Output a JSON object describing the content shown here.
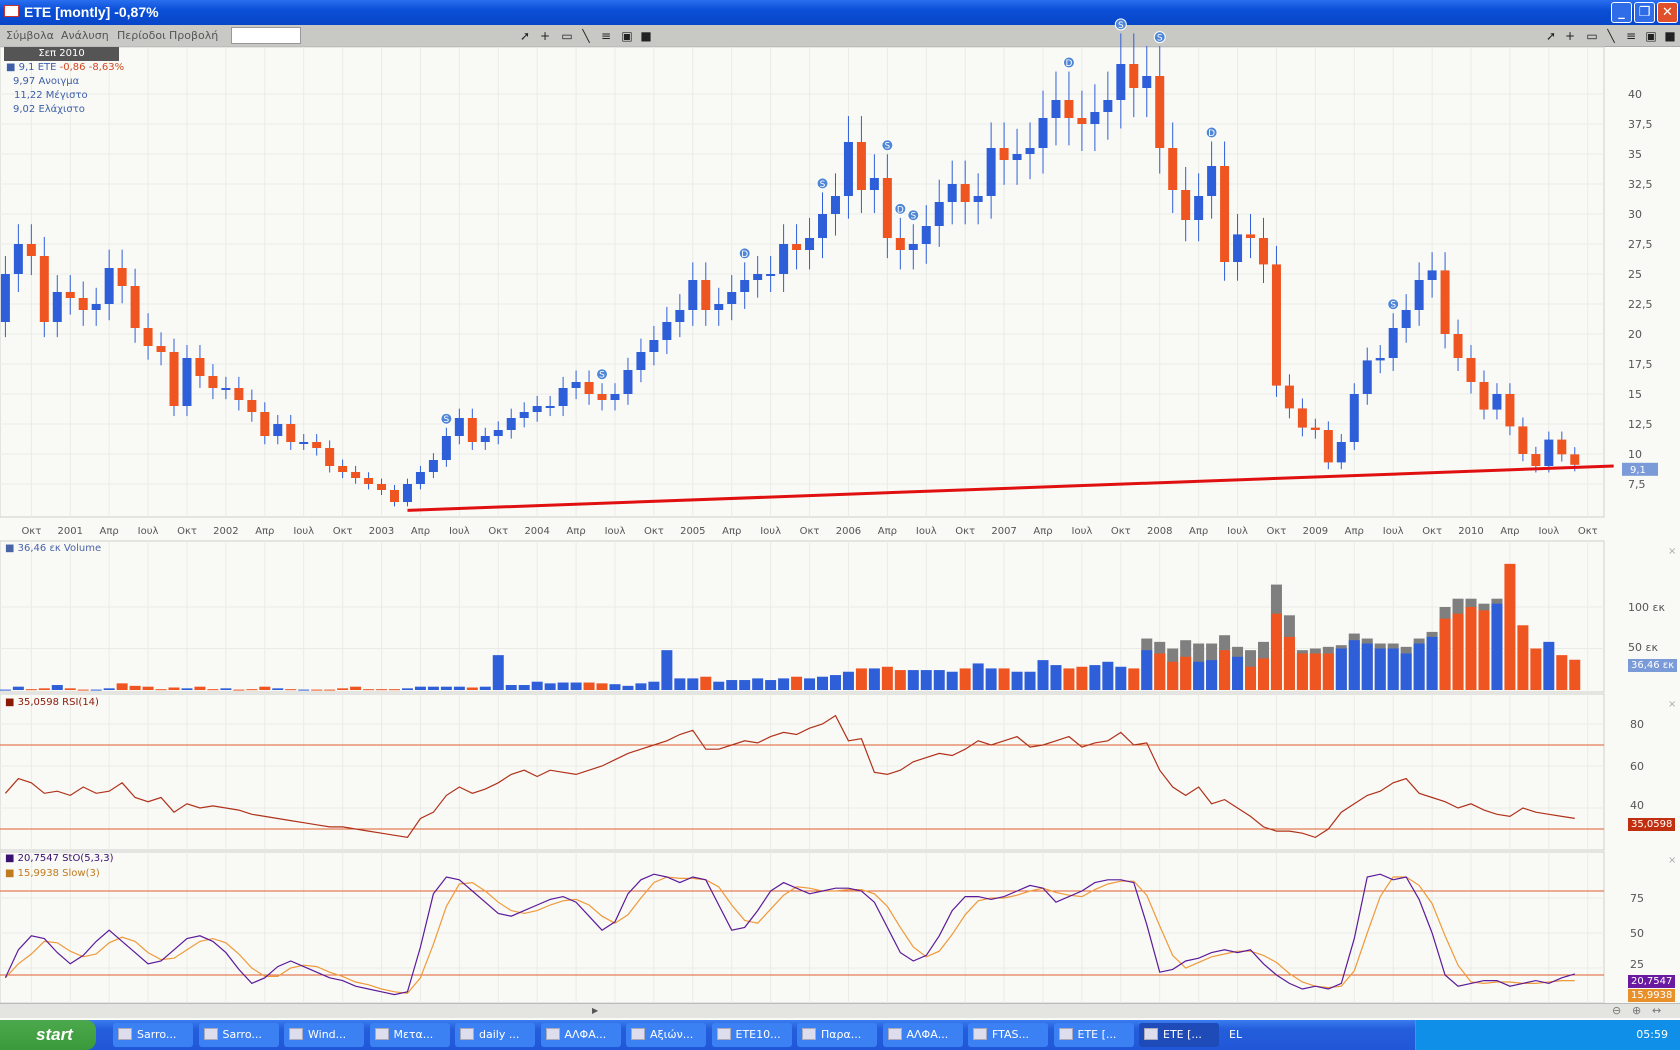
{
  "window": {
    "title": "ETE [montly] -0,87%",
    "buttons": [
      "_",
      "❐",
      "✕"
    ]
  },
  "menu": {
    "items": [
      "Σύμβολα",
      "Ανάλυση",
      "Περίοδοι",
      "Προβολή"
    ],
    "search_value": "",
    "tools": [
      "pointer-icon",
      "crosshair-icon",
      "rectangle-icon",
      "line-icon",
      "grid-lines-icon",
      "chart-icon",
      "save-icon"
    ]
  },
  "legend": {
    "date": "Σεπ 2010",
    "last": "9,1 ETE",
    "change": "-0,86 -8,63%",
    "open": "9,97 Ανοιγμα",
    "high": "11,22 Μέγιστο",
    "low": "9,02 Ελάχιστο"
  },
  "panes": {
    "volume": {
      "label": "36,46 εκ Volume",
      "ticks": [
        "50 εκ",
        "100 εκ"
      ],
      "tag": "36,46 εκ"
    },
    "rsi": {
      "label": "35,0598 RSI(14)",
      "ticks": [
        "40",
        "60",
        "80"
      ],
      "tag": "35,0598"
    },
    "stoch": {
      "label_k": "20,7547 StO(5,3,3)",
      "label_slow": "15,9938 Slow(3)",
      "ticks": [
        "25",
        "50",
        "75"
      ],
      "tag_k": "20,7547",
      "tag_slow": "15,9938"
    },
    "close_icon": "×"
  },
  "colors": {
    "up": "#2f5fd8",
    "down": "#ef5521",
    "trendline": "#e01010",
    "volume_gray": "#7f7f7f",
    "rsi": "#b0321a",
    "bands": "#e0602e",
    "stoch_k": "#5a1a9a",
    "stoch_slow": "#ef9a3a"
  },
  "chart_data": {
    "type": "candlestick",
    "start_month": "2000-08",
    "end_month": "2010-09",
    "first_open": 21,
    "close": [
      25,
      27.5,
      26.5,
      21,
      23.5,
      23,
      22,
      22.5,
      25.5,
      24,
      20.5,
      19,
      18.5,
      14,
      18,
      16.5,
      15.5,
      15.5,
      14.5,
      13.5,
      11.5,
      12.5,
      11,
      11,
      10.5,
      9,
      8.5,
      8,
      7.5,
      7,
      6,
      7.5,
      8.5,
      9.5,
      11.5,
      13,
      11,
      11.5,
      12,
      13,
      13.5,
      14,
      14,
      15.5,
      16,
      15,
      14.5,
      15,
      17,
      18.5,
      19.5,
      21,
      22,
      24.5,
      22,
      22.5,
      23.5,
      24.5,
      25,
      25,
      27.5,
      27,
      28,
      30,
      31.5,
      36,
      32,
      33,
      28,
      27,
      27.5,
      29,
      31,
      32.5,
      31,
      31.5,
      35.5,
      34.5,
      35,
      35.5,
      38,
      39.5,
      38,
      37.5,
      38.5,
      39.5,
      42.5,
      40.5,
      41.5,
      35.5,
      32,
      29.5,
      31.5,
      34,
      26,
      28.3,
      28,
      25.8,
      15.7,
      13.8,
      12.2,
      12,
      9.3,
      11,
      15,
      17.8,
      18,
      20.5,
      22,
      24.5,
      25.3,
      20,
      18,
      16,
      13.7,
      15,
      12.3,
      10,
      9,
      11.2,
      9.97,
      9.1
    ],
    "price_axis": {
      "ticks": [
        "7,5",
        "10",
        "12,5",
        "15",
        "17,5",
        "20",
        "22,5",
        "25",
        "27,5",
        "30",
        "32,5",
        "35",
        "37,5",
        "40"
      ],
      "range": [
        5,
        45
      ]
    },
    "last_price_tag": "9,1",
    "trendline": {
      "from": [
        "2003-03",
        5.3
      ],
      "to": [
        "2010-12",
        9.0
      ]
    },
    "signals": [
      {
        "month": "2003-06",
        "type": "S"
      },
      {
        "month": "2004-06",
        "type": "S"
      },
      {
        "month": "2005-05",
        "type": "D"
      },
      {
        "month": "2005-11",
        "type": "S"
      },
      {
        "month": "2006-04",
        "type": "S"
      },
      {
        "month": "2006-05",
        "type": "D"
      },
      {
        "month": "2006-06",
        "type": "S"
      },
      {
        "month": "2007-06",
        "type": "D"
      },
      {
        "month": "2007-10",
        "type": "S"
      },
      {
        "month": "2008-01",
        "type": "S"
      },
      {
        "month": "2008-05",
        "type": "D"
      },
      {
        "month": "2009-07",
        "type": "S"
      }
    ],
    "date_ticks": [
      [
        "2000-10",
        "Οκτ"
      ],
      [
        "2001-01",
        "2001"
      ],
      [
        "2001-04",
        "Απρ"
      ],
      [
        "2001-07",
        "Ιουλ"
      ],
      [
        "2001-10",
        "Οκτ"
      ],
      [
        "2002-01",
        "2002"
      ],
      [
        "2002-04",
        "Απρ"
      ],
      [
        "2002-07",
        "Ιουλ"
      ],
      [
        "2002-10",
        "Οκτ"
      ],
      [
        "2003-01",
        "2003"
      ],
      [
        "2003-04",
        "Απρ"
      ],
      [
        "2003-07",
        "Ιουλ"
      ],
      [
        "2003-10",
        "Οκτ"
      ],
      [
        "2004-01",
        "2004"
      ],
      [
        "2004-04",
        "Απρ"
      ],
      [
        "2004-07",
        "Ιουλ"
      ],
      [
        "2004-10",
        "Οκτ"
      ],
      [
        "2005-01",
        "2005"
      ],
      [
        "2005-04",
        "Απρ"
      ],
      [
        "2005-07",
        "Ιουλ"
      ],
      [
        "2005-10",
        "Οκτ"
      ],
      [
        "2006-01",
        "2006"
      ],
      [
        "2006-04",
        "Απρ"
      ],
      [
        "2006-07",
        "Ιουλ"
      ],
      [
        "2006-10",
        "Οκτ"
      ],
      [
        "2007-01",
        "2007"
      ],
      [
        "2007-04",
        "Απρ"
      ],
      [
        "2007-07",
        "Ιουλ"
      ],
      [
        "2007-10",
        "Οκτ"
      ],
      [
        "2008-01",
        "2008"
      ],
      [
        "2008-04",
        "Απρ"
      ],
      [
        "2008-07",
        "Ιουλ"
      ],
      [
        "2008-10",
        "Οκτ"
      ],
      [
        "2009-01",
        "2009"
      ],
      [
        "2009-04",
        "Απρ"
      ],
      [
        "2009-07",
        "Ιουλ"
      ],
      [
        "2009-10",
        "Οκτ"
      ],
      [
        "2010-01",
        "2010"
      ],
      [
        "2010-04",
        "Απρ"
      ],
      [
        "2010-07",
        "Ιουλ"
      ],
      [
        "2010-10",
        "Οκτ"
      ]
    ],
    "volume": [
      0.5,
      4,
      1,
      2,
      6,
      2,
      0.5,
      0.5,
      2,
      8,
      5,
      4,
      1,
      3,
      2,
      4,
      1,
      2,
      0.5,
      1,
      4,
      2,
      1,
      0.5,
      0.5,
      0.5,
      2,
      4,
      1,
      1,
      1,
      2,
      4,
      4,
      4,
      4,
      3,
      4,
      42,
      6,
      6,
      10,
      8,
      9,
      9,
      9,
      8,
      7,
      5,
      8,
      10,
      48,
      14,
      14,
      16,
      10,
      12,
      12,
      14,
      12,
      14,
      16,
      14,
      16,
      18,
      22,
      26,
      26,
      28,
      24,
      24,
      24,
      24,
      22,
      26,
      32,
      26,
      26,
      22,
      22,
      36,
      30,
      26,
      28,
      30,
      34,
      28,
      26,
      48,
      44,
      34,
      40,
      34,
      36,
      48,
      40,
      28,
      38,
      92,
      64,
      44,
      44,
      44,
      50,
      60,
      56,
      50,
      50,
      44,
      56,
      64,
      86,
      92,
      100,
      96,
      104,
      152,
      78,
      50,
      58,
      42,
      36.46
    ],
    "volume_total_from": "2007-12",
    "volume_total": [
      62,
      58,
      50,
      60,
      56,
      56,
      66,
      52,
      48,
      58,
      127,
      90,
      48,
      50,
      52,
      54,
      68,
      62,
      56,
      56,
      52,
      62,
      70,
      100,
      110,
      110,
      104,
      110,
      152,
      78,
      50,
      58,
      42,
      36.46
    ],
    "rsi": [
      47,
      54,
      52,
      47,
      48,
      46,
      50,
      47,
      48,
      52,
      45,
      43,
      45,
      38,
      42,
      40,
      41,
      40,
      39,
      37,
      36,
      35,
      34,
      33,
      32,
      31,
      31,
      30,
      29,
      28,
      27,
      26,
      35,
      38,
      46,
      50,
      47,
      49,
      52,
      56,
      58,
      55,
      58,
      57,
      56,
      58,
      60,
      63,
      66,
      68,
      70,
      72,
      75,
      77,
      68,
      68,
      70,
      72,
      71,
      74,
      76,
      75,
      78,
      80,
      84,
      72,
      73,
      57,
      56,
      58,
      62,
      64,
      66,
      65,
      68,
      72,
      70,
      72,
      74,
      69,
      70,
      72,
      74,
      69,
      71,
      72,
      76,
      70,
      71,
      58,
      50,
      46,
      50,
      42,
      44,
      40,
      36,
      31,
      29,
      29,
      28,
      26,
      30,
      38,
      42,
      46,
      48,
      52,
      54,
      47,
      45,
      43,
      40,
      42,
      39,
      37,
      36,
      40,
      38,
      37,
      36,
      35.06
    ],
    "rsi_bands": [
      30,
      70
    ],
    "stoch_k": [
      18,
      38,
      48,
      46,
      36,
      28,
      34,
      44,
      52,
      44,
      36,
      28,
      30,
      38,
      46,
      48,
      44,
      36,
      24,
      14,
      18,
      26,
      30,
      26,
      22,
      18,
      16,
      12,
      10,
      8,
      6,
      8,
      40,
      78,
      90,
      88,
      80,
      72,
      64,
      62,
      66,
      70,
      74,
      76,
      72,
      62,
      52,
      58,
      78,
      88,
      92,
      90,
      86,
      90,
      88,
      70,
      52,
      54,
      66,
      80,
      86,
      82,
      78,
      80,
      82,
      82,
      80,
      72,
      54,
      36,
      30,
      34,
      48,
      66,
      76,
      76,
      74,
      76,
      80,
      84,
      82,
      72,
      76,
      80,
      86,
      88,
      88,
      86,
      56,
      22,
      24,
      30,
      32,
      36,
      38,
      36,
      38,
      28,
      20,
      14,
      10,
      12,
      10,
      14,
      46,
      90,
      92,
      88,
      90,
      74,
      50,
      20,
      12,
      14,
      16,
      16,
      12,
      14,
      16,
      14,
      18,
      20.75
    ],
    "stoch_slow": [
      18,
      28,
      35,
      44,
      43,
      37,
      33,
      35,
      43,
      47,
      44,
      36,
      31,
      32,
      38,
      44,
      46,
      43,
      35,
      25,
      19,
      19,
      25,
      27,
      26,
      22,
      19,
      15,
      13,
      10,
      8,
      7,
      18,
      42,
      69,
      85,
      86,
      80,
      72,
      66,
      64,
      66,
      70,
      73,
      74,
      70,
      62,
      57,
      63,
      75,
      86,
      90,
      89,
      89,
      88,
      83,
      70,
      59,
      57,
      67,
      77,
      83,
      82,
      80,
      80,
      81,
      81,
      78,
      69,
      54,
      40,
      33,
      37,
      49,
      63,
      73,
      75,
      75,
      77,
      80,
      82,
      79,
      77,
      76,
      81,
      85,
      87,
      87,
      77,
      55,
      34,
      25,
      29,
      33,
      35,
      37,
      37,
      34,
      29,
      21,
      15,
      12,
      11,
      12,
      23,
      50,
      76,
      90,
      90,
      84,
      71,
      48,
      27,
      15,
      14,
      15,
      15,
      14,
      14,
      15,
      16,
      15.99
    ],
    "stoch_bands": [
      20,
      80
    ]
  },
  "taskbar": {
    "start": "start",
    "items": [
      "Sarro...",
      "Sarro...",
      "Wind...",
      "Μετα...",
      "daily ...",
      "ΑΛΦΑ...",
      "Αξιών...",
      "ETE10...",
      "Παρα...",
      "ΑΛΦΑ...",
      "FTAS...",
      "ETE [...",
      "ETE [..."
    ],
    "lang": "EL",
    "clock": "05:59"
  }
}
